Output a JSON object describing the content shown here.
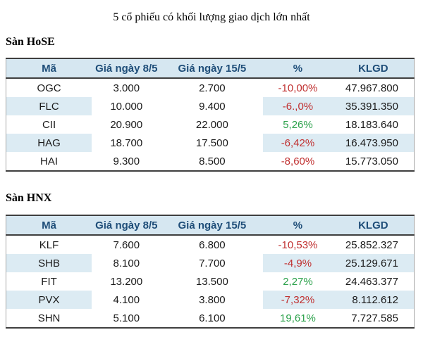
{
  "page": {
    "title": "5 cổ phiếu có khối lượng giao dịch lớn nhất"
  },
  "colors": {
    "header_text": "#1f4e79",
    "header_bg": "#d6e7f1",
    "alt_row_bg": "#dcebf3",
    "down": "#c03030",
    "up": "#2da24c"
  },
  "sections": [
    {
      "heading": "Sàn HoSE",
      "columns": {
        "ma": "Mã",
        "gia_8_5": "Giá ngày 8/5",
        "gia_15_5": "Giá ngày 15/5",
        "pct": "%",
        "klgd": "KLGD"
      },
      "rows": [
        {
          "ma": "OGC",
          "gia_8_5": "3.000",
          "gia_15_5": "2.700",
          "pct": "-10,00%",
          "trend": "down",
          "klgd": "47.967.800"
        },
        {
          "ma": "FLC",
          "gia_8_5": "10.000",
          "gia_15_5": "9.400",
          "pct": "-6.,0%",
          "trend": "down",
          "klgd": "35.391.350"
        },
        {
          "ma": "CII",
          "gia_8_5": "20.900",
          "gia_15_5": "22.000",
          "pct": "5,26%",
          "trend": "up",
          "klgd": "18.183.640"
        },
        {
          "ma": "HAG",
          "gia_8_5": "18.700",
          "gia_15_5": "17.500",
          "pct": "-6,42%",
          "trend": "down",
          "klgd": "16.473.950"
        },
        {
          "ma": "HAI",
          "gia_8_5": "9.300",
          "gia_15_5": "8.500",
          "pct": "-8,60%",
          "trend": "down",
          "klgd": "15.773.050"
        }
      ]
    },
    {
      "heading": "Sàn HNX",
      "columns": {
        "ma": "Mã",
        "gia_8_5": "Giá ngày 8/5",
        "gia_15_5": "Giá ngày 15/5",
        "pct": "%",
        "klgd": "KLGD"
      },
      "rows": [
        {
          "ma": "KLF",
          "gia_8_5": "7.600",
          "gia_15_5": "6.800",
          "pct": "-10,53%",
          "trend": "down",
          "klgd": "25.852.327"
        },
        {
          "ma": "SHB",
          "gia_8_5": "8.100",
          "gia_15_5": "7.700",
          "pct": "-4,9%",
          "trend": "down",
          "klgd": "25.129.671"
        },
        {
          "ma": "FIT",
          "gia_8_5": "13.200",
          "gia_15_5": "13.500",
          "pct": "2,27%",
          "trend": "up",
          "klgd": "24.463.377"
        },
        {
          "ma": "PVX",
          "gia_8_5": "4.100",
          "gia_15_5": "3.800",
          "pct": "-7,32%",
          "trend": "down",
          "klgd": "8.112.612"
        },
        {
          "ma": "SHN",
          "gia_8_5": "5.100",
          "gia_15_5": "6.100",
          "pct": "19,61%",
          "trend": "up",
          "klgd": "7.727.585"
        }
      ]
    }
  ]
}
